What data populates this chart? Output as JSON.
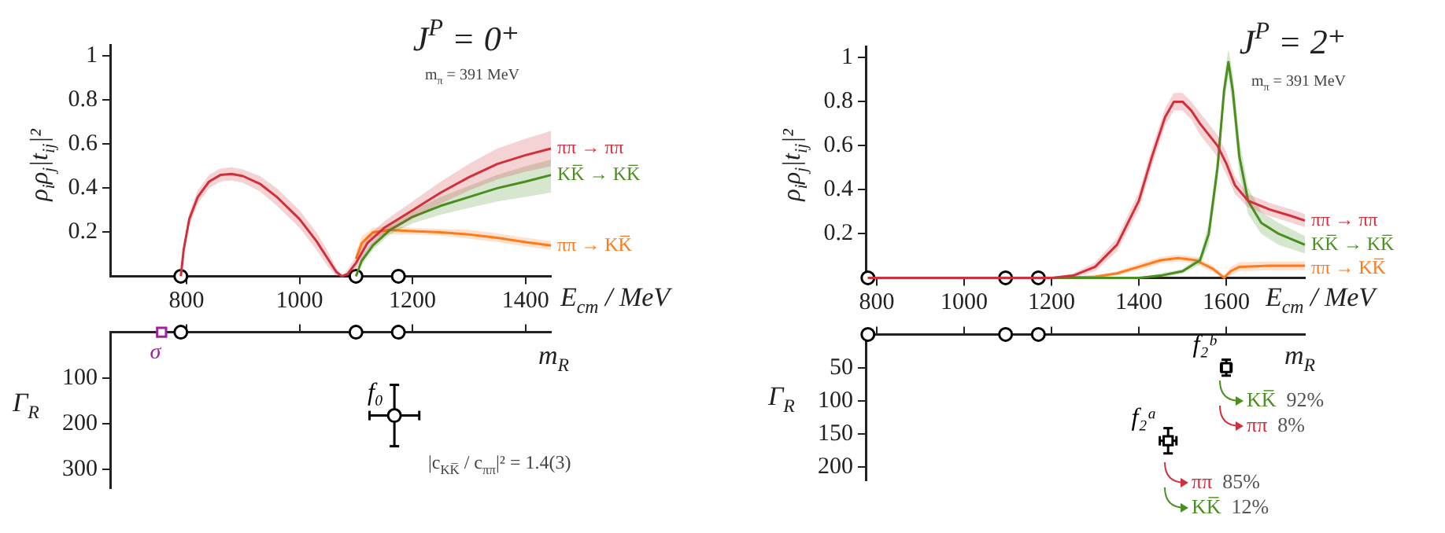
{
  "chart_data": [
    {
      "type": "line",
      "title": "J$^{P}$ = 0⁺",
      "subtitle": "m$_{π}$ = 391 MeV",
      "xlabel": "E$_{cm}$ / MeV",
      "ylabel": "ρ$_{i}$ρ$_{j}$|t$_{ij}$|²",
      "xlim": [
        665,
        1445
      ],
      "xticks": [
        800,
        1000,
        1200,
        1400
      ],
      "ylim": [
        0,
        1.05
      ],
      "yticks": [
        0.2,
        0.4,
        0.6,
        0.8,
        1
      ],
      "grid": false,
      "legend": false,
      "marker": "none",
      "series": [
        {
          "name": "ππ → ππ",
          "color": "#d0303c",
          "x": [
            790,
            795,
            805,
            820,
            840,
            860,
            880,
            900,
            930,
            960,
            1000,
            1030,
            1050,
            1065,
            1075,
            1085,
            1100,
            1120,
            1150,
            1200,
            1250,
            1300,
            1350,
            1400,
            1445
          ],
          "values": [
            0,
            0.12,
            0.26,
            0.36,
            0.43,
            0.46,
            0.465,
            0.455,
            0.42,
            0.36,
            0.26,
            0.16,
            0.08,
            0.02,
            0,
            0.01,
            0.06,
            0.15,
            0.22,
            0.3,
            0.38,
            0.45,
            0.51,
            0.55,
            0.58
          ],
          "lower": [
            0,
            0.1,
            0.23,
            0.33,
            0.4,
            0.43,
            0.435,
            0.425,
            0.385,
            0.32,
            0.22,
            0.12,
            0.045,
            0,
            0,
            0,
            0.03,
            0.12,
            0.19,
            0.26,
            0.33,
            0.39,
            0.44,
            0.475,
            0.5
          ],
          "upper": [
            0,
            0.14,
            0.29,
            0.39,
            0.46,
            0.49,
            0.495,
            0.485,
            0.455,
            0.4,
            0.3,
            0.2,
            0.115,
            0.04,
            0,
            0.03,
            0.09,
            0.18,
            0.25,
            0.34,
            0.43,
            0.51,
            0.58,
            0.625,
            0.66
          ]
        },
        {
          "name": "KK̅ → KK̅",
          "color": "#4a8f1f",
          "x": [
            1100,
            1110,
            1130,
            1160,
            1200,
            1250,
            1300,
            1350,
            1400,
            1445
          ],
          "values": [
            0,
            0.07,
            0.14,
            0.21,
            0.27,
            0.32,
            0.36,
            0.4,
            0.43,
            0.46
          ],
          "lower": [
            0,
            0.05,
            0.12,
            0.19,
            0.24,
            0.28,
            0.31,
            0.34,
            0.36,
            0.38
          ],
          "upper": [
            0,
            0.09,
            0.16,
            0.23,
            0.3,
            0.36,
            0.41,
            0.46,
            0.5,
            0.53
          ]
        },
        {
          "name": "ππ → KK̅",
          "color": "#ff7a1a",
          "x": [
            1100,
            1110,
            1130,
            1160,
            1200,
            1250,
            1300,
            1350,
            1400,
            1445
          ],
          "values": [
            0.08,
            0.15,
            0.2,
            0.21,
            0.205,
            0.2,
            0.19,
            0.175,
            0.155,
            0.14
          ],
          "lower": [
            0.05,
            0.12,
            0.18,
            0.19,
            0.19,
            0.185,
            0.17,
            0.155,
            0.135,
            0.12
          ],
          "upper": [
            0.11,
            0.18,
            0.22,
            0.23,
            0.22,
            0.215,
            0.21,
            0.195,
            0.175,
            0.16
          ]
        },
        {
          "type": "scatter",
          "marker": "circle",
          "color": "#000000",
          "x": [
            790,
            1100,
            1175
          ],
          "values": [
            0,
            0,
            0
          ]
        }
      ]
    },
    {
      "type": "scatter",
      "xlabel": "m$_{R}$",
      "ylabel": "Γ$_{R}$",
      "xlim": [
        665,
        1445
      ],
      "xticks": [
        800,
        1000,
        1200,
        1400
      ],
      "ylim": [
        340,
        0
      ],
      "yticks": [
        100,
        200,
        300
      ],
      "tick_labels": "y",
      "grid": false,
      "legend": false,
      "marker": "circle",
      "annotations": [
        "|c$_{KK̅}$ / c$_{ππ}$|² = 1.4(3)"
      ],
      "series": [
        {
          "color": "#000000",
          "x": [
            790,
            1100,
            1175
          ],
          "values": [
            0,
            0,
            0
          ]
        },
        {
          "name": "σ",
          "color": "#a020a0",
          "marker": "square",
          "x": [
            756
          ],
          "values": [
            0
          ]
        },
        {
          "name": "f₀",
          "color": "#000000",
          "x": [
            1168
          ],
          "values": [
            182
          ],
          "errors": [
            67
          ],
          "xerrors": [
            44
          ]
        }
      ]
    },
    {
      "type": "line",
      "title": "J$^{P}$ = 2⁺",
      "subtitle": "m$_{π}$ = 391 MeV",
      "xlabel": "E$_{cm}$ / MeV",
      "ylabel": "ρ$_{i}$ρ$_{j}$|t$_{ij}$|²",
      "xlim": [
        775,
        1780
      ],
      "xticks": [
        800,
        1000,
        1200,
        1400,
        1600
      ],
      "ylim": [
        0,
        1.05
      ],
      "yticks": [
        0.2,
        0.4,
        0.6,
        0.8,
        1
      ],
      "grid": false,
      "legend": false,
      "marker": "none",
      "series": [
        {
          "name": "ππ → ππ",
          "color": "#d0303c",
          "x": [
            780,
            1000,
            1200,
            1250,
            1300,
            1350,
            1400,
            1430,
            1460,
            1480,
            1500,
            1520,
            1540,
            1560,
            1580,
            1600,
            1620,
            1650,
            1700,
            1750,
            1780
          ],
          "values": [
            0,
            0,
            0,
            0.01,
            0.05,
            0.15,
            0.35,
            0.55,
            0.73,
            0.8,
            0.8,
            0.76,
            0.7,
            0.65,
            0.6,
            0.52,
            0.42,
            0.35,
            0.31,
            0.28,
            0.26
          ],
          "lower": [
            0,
            0,
            0,
            0,
            0.03,
            0.12,
            0.31,
            0.51,
            0.69,
            0.76,
            0.76,
            0.72,
            0.65,
            0.6,
            0.55,
            0.47,
            0.38,
            0.32,
            0.28,
            0.25,
            0.23
          ],
          "upper": [
            0,
            0,
            0,
            0.02,
            0.07,
            0.18,
            0.39,
            0.59,
            0.77,
            0.84,
            0.84,
            0.8,
            0.75,
            0.7,
            0.65,
            0.57,
            0.46,
            0.38,
            0.34,
            0.31,
            0.29
          ]
        },
        {
          "name": "KK̅ → KK̅",
          "color": "#4a8f1f",
          "x": [
            780,
            1200,
            1400,
            1450,
            1500,
            1540,
            1560,
            1580,
            1595,
            1605,
            1615,
            1630,
            1650,
            1680,
            1720,
            1780
          ],
          "values": [
            0,
            0,
            0,
            0.01,
            0.03,
            0.08,
            0.2,
            0.5,
            0.85,
            0.98,
            0.85,
            0.55,
            0.35,
            0.25,
            0.2,
            0.15
          ],
          "lower": [
            0,
            0,
            0,
            0,
            0.02,
            0.06,
            0.15,
            0.44,
            0.79,
            0.92,
            0.77,
            0.47,
            0.29,
            0.2,
            0.15,
            0.11
          ],
          "upper": [
            0,
            0,
            0,
            0.02,
            0.04,
            0.1,
            0.25,
            0.56,
            0.91,
            1.04,
            0.93,
            0.63,
            0.41,
            0.3,
            0.25,
            0.19
          ]
        },
        {
          "name": "ππ → KK̅",
          "color": "#ff7a1a",
          "x": [
            780,
            1200,
            1300,
            1350,
            1400,
            1450,
            1490,
            1530,
            1570,
            1595,
            1610,
            1630,
            1700,
            1780
          ],
          "values": [
            0,
            0,
            0.005,
            0.02,
            0.05,
            0.08,
            0.09,
            0.08,
            0.04,
            0,
            0.03,
            0.05,
            0.055,
            0.055
          ],
          "lower": [
            0,
            0,
            0,
            0.01,
            0.035,
            0.065,
            0.075,
            0.065,
            0.025,
            0,
            0.01,
            0.03,
            0.035,
            0.035
          ],
          "upper": [
            0,
            0,
            0.01,
            0.03,
            0.065,
            0.095,
            0.105,
            0.095,
            0.055,
            0.01,
            0.05,
            0.07,
            0.075,
            0.075
          ]
        },
        {
          "type": "scatter",
          "marker": "circle",
          "color": "#000000",
          "x": [
            780,
            1095,
            1170
          ],
          "values": [
            0,
            0,
            0
          ]
        }
      ]
    },
    {
      "type": "scatter",
      "xlabel": "m$_{R}$",
      "ylabel": "Γ$_{R}$",
      "xlim": [
        775,
        1780
      ],
      "xticks": [
        800,
        1000,
        1200,
        1400,
        1600
      ],
      "ylim": [
        220,
        0
      ],
      "yticks": [
        50,
        100,
        150,
        200
      ],
      "tick_labels": "y",
      "grid": false,
      "legend": false,
      "marker": "square",
      "annotations": [
        "KK̅  92%",
        "ππ  8%",
        "ππ  85%",
        "KK̅  12%"
      ],
      "series": [
        {
          "color": "#000000",
          "marker": "circle",
          "x": [
            780,
            1095,
            1170
          ],
          "values": [
            0,
            0,
            0
          ]
        },
        {
          "name": "f₂ᵇ",
          "color": "#000000",
          "x": [
            1600
          ],
          "values": [
            50
          ],
          "errors": [
            12
          ],
          "xerrors": [
            12
          ]
        },
        {
          "name": "f₂ᵃ",
          "color": "#000000",
          "x": [
            1467
          ],
          "values": [
            160
          ],
          "errors": [
            19
          ],
          "xerrors": [
            19
          ]
        }
      ]
    }
  ]
}
